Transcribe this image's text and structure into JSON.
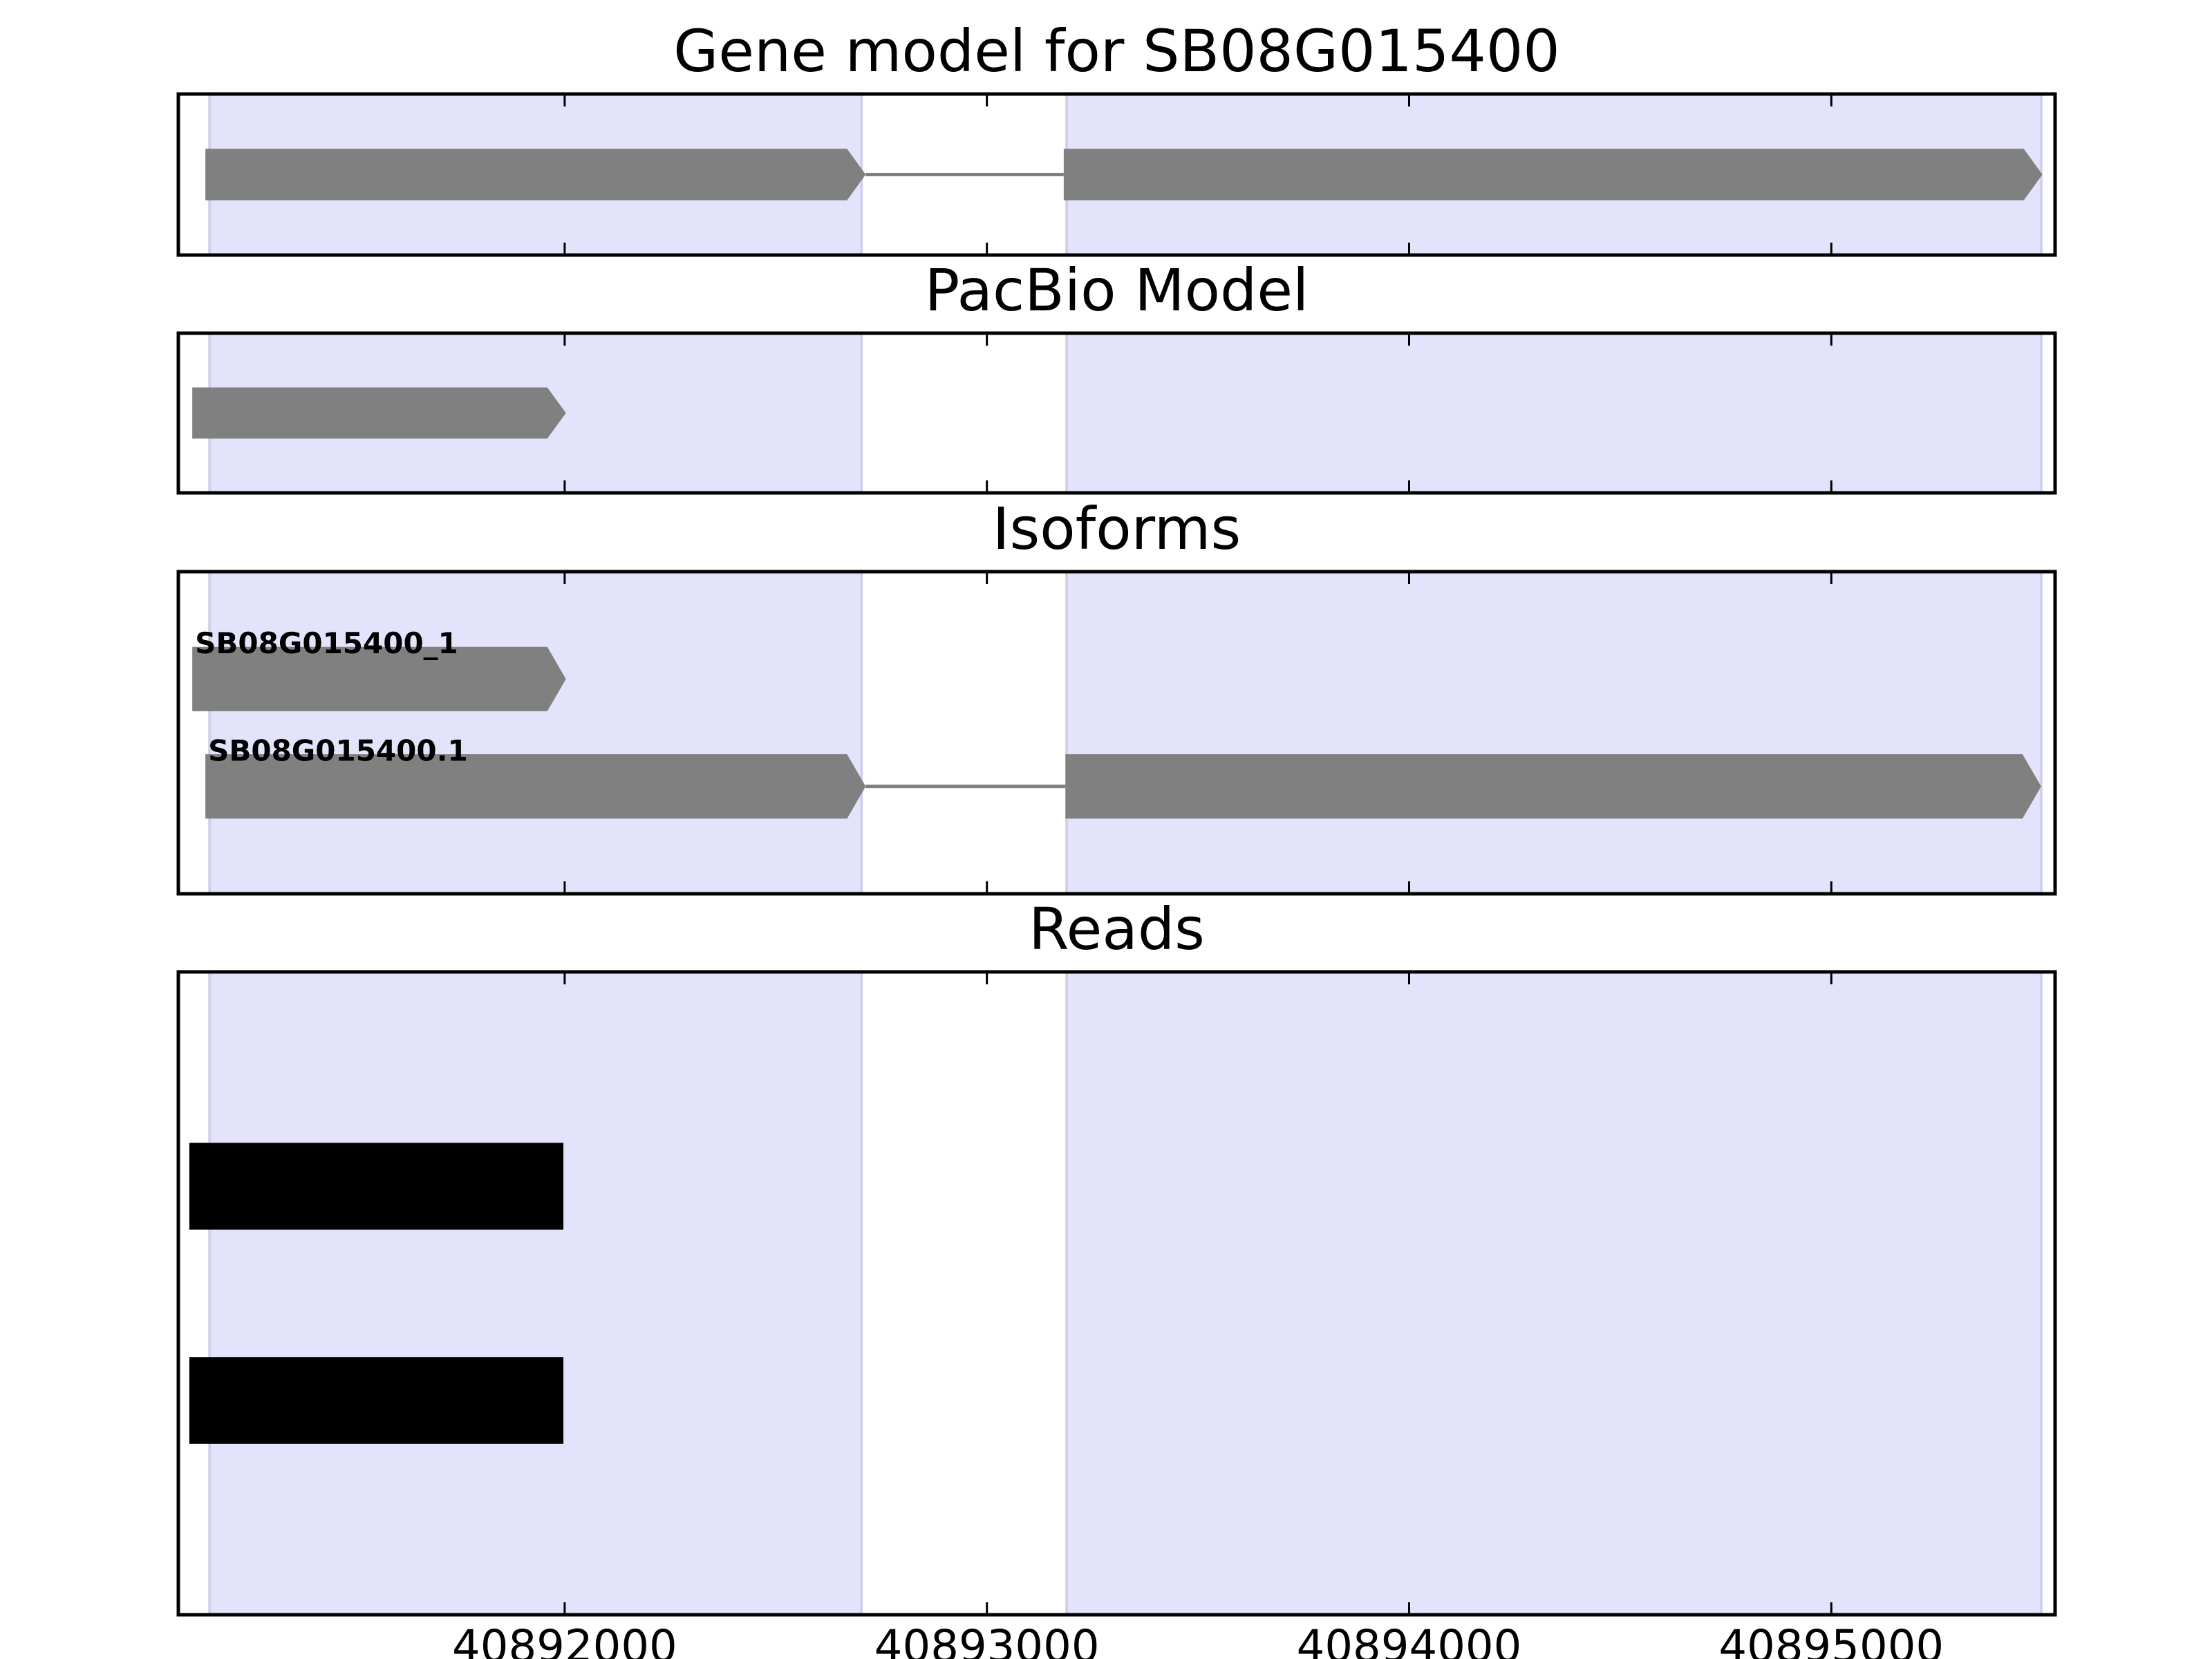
{
  "chart_data": [
    {
      "type": "gene-track",
      "title": "Gene model for SB08G015400",
      "xlim": [
        40891085,
        40895530
      ],
      "shading": [
        [
          40891159,
          40892703
        ],
        [
          40893189,
          40895497
        ]
      ],
      "shade_color": "#e3e3fc",
      "color": "#808080",
      "features": [
        {
          "exons": [
            [
              40891149,
              40892713
            ],
            [
              40893182,
              40895500
            ]
          ]
        }
      ]
    },
    {
      "type": "gene-track",
      "title": "PacBio Model",
      "xlim": [
        40891085,
        40895530
      ],
      "shading": [
        [
          40891159,
          40892703
        ],
        [
          40893189,
          40895497
        ]
      ],
      "shade_color": "#e3e3fc",
      "color": "#808080",
      "features": [
        {
          "exons": [
            [
              40891118,
              40892003
            ]
          ]
        }
      ]
    },
    {
      "type": "gene-track",
      "title": "Isoforms",
      "xlim": [
        40891085,
        40895530
      ],
      "shading": [
        [
          40891159,
          40892703
        ],
        [
          40893189,
          40895497
        ]
      ],
      "shade_color": "#e3e3fc",
      "color": "#808080",
      "features": [
        {
          "name": "SB08G015400_1",
          "exons": [
            [
              40891118,
              40892003
            ]
          ]
        },
        {
          "name": "SB08G015400.1",
          "exons": [
            [
              40891149,
              40892713
            ],
            [
              40893186,
              40895497
            ]
          ]
        }
      ]
    },
    {
      "type": "read-track",
      "title": "Reads",
      "xlim": [
        40891085,
        40895530
      ],
      "shading": [
        [
          40891159,
          40892703
        ],
        [
          40893189,
          40895497
        ]
      ],
      "shade_color": "#e3e3fc",
      "color": "#000000",
      "features": [
        {
          "exons": [
            [
              40891111,
              40891997
            ]
          ]
        },
        {
          "exons": [
            [
              40891111,
              40891997
            ]
          ]
        }
      ],
      "xticks": [
        40892000,
        40893000,
        40894000,
        40895000
      ]
    }
  ]
}
